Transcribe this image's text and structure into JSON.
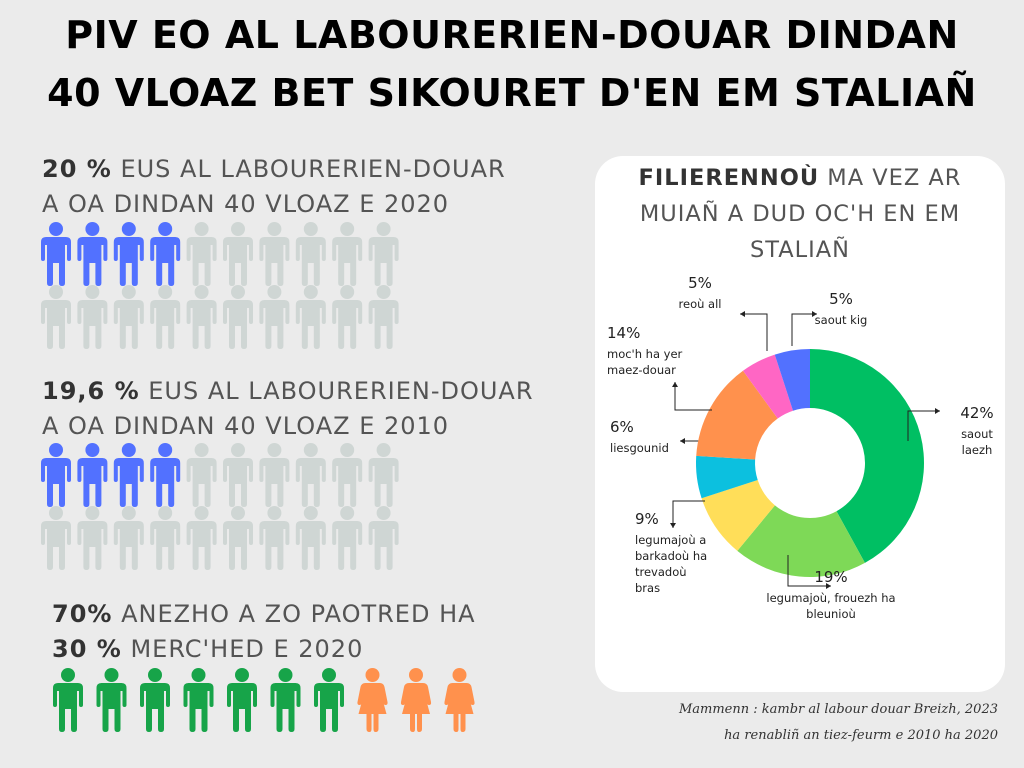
{
  "title_line1": "PIV EO AL LABOURERIEN-DOUAR DINDAN",
  "title_line2": "40 VLOAZ BET SIKOURET D'EN EM STALIAÑ",
  "stat2020": {
    "bold": " 20 %",
    "text1": " EUS AL LABOURERIEN-DOUAR",
    "text2": "A OA DINDAN 40 VLOAZ E 2020",
    "filled": 4,
    "total": 20,
    "fill_color": "#5271ff",
    "empty_color": "#cfd6d4"
  },
  "stat2010": {
    "bold": "19,6 %",
    "text1": " EUS AL LABOURERIEN-DOUAR",
    "text2": "A OA DINDAN 40 VLOAZ E 2010",
    "filled": 4,
    "total": 20,
    "fill_color": "#5271ff",
    "empty_color": "#cfd6d4"
  },
  "gender": {
    "bold1": "70%",
    "text1": " ANEZHO A ZO PAOTRED HA",
    "bold2": "30 %",
    "text2": " MERC'HED E 2020",
    "men": 7,
    "women": 3,
    "men_color": "#17a449",
    "women_color": "#ff914d"
  },
  "chart_title": {
    "bold": "FILIERENNOÙ",
    "rest1": " MA VEZ AR",
    "line2": "MUIAÑ A DUD OC'H EN EM",
    "line3": "STALIAÑ"
  },
  "chart_data": {
    "type": "pie",
    "subtype": "donut",
    "slices": [
      {
        "label_lines": [
          "saout",
          "laezh"
        ],
        "value": 42,
        "pct_label": "42%",
        "color": "#00bf63"
      },
      {
        "label_lines": [
          "legumajoù, frouezh ha",
          "bleunioù"
        ],
        "value": 19,
        "pct_label": "19%",
        "color": "#7ed957"
      },
      {
        "label_lines": [
          "legumajoù a",
          "barkadoù ha",
          "trevadoù",
          "bras"
        ],
        "value": 9,
        "pct_label": "9%",
        "color": "#ffde59"
      },
      {
        "label_lines": [
          "liesgounid"
        ],
        "value": 6,
        "pct_label": "6%",
        "color": "#0cc0df"
      },
      {
        "label_lines": [
          "moc'h ha yer",
          "maez-douar"
        ],
        "value": 14,
        "pct_label": "14%",
        "color": "#ff914d"
      },
      {
        "label_lines": [
          "reoù all"
        ],
        "value": 5,
        "pct_label": "5%",
        "color": "#ff66c4"
      },
      {
        "label_lines": [
          "saout kig"
        ],
        "value": 5,
        "pct_label": "5%",
        "color": "#5271ff"
      }
    ]
  },
  "source_line1": "Mammenn : kambr al labour douar Breizh, 2023",
  "source_line2": "ha renabliñ an tiez-feurm e 2010 ha 2020"
}
